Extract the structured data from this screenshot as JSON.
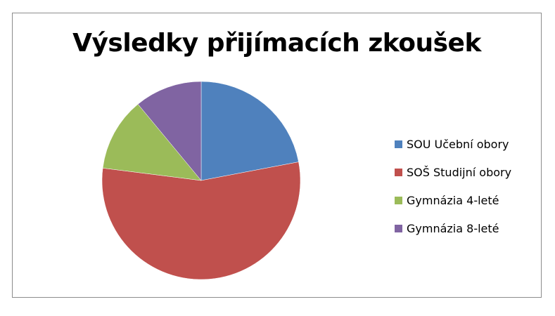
{
  "chart_data": {
    "type": "pie",
    "title": "Výsledky přijímacích zkoušek",
    "legend_position": "right",
    "categories": [
      "SOU Učební obory",
      "SOŠ Studijní obory",
      "Gymnázia 4-leté",
      "Gymnázia 8-leté"
    ],
    "values": [
      22,
      55,
      12,
      11
    ],
    "colors": [
      "#4f81bd",
      "#c0504d",
      "#9bbb59",
      "#8064a2"
    ],
    "start_angle_deg": 0,
    "direction": "clockwise"
  }
}
